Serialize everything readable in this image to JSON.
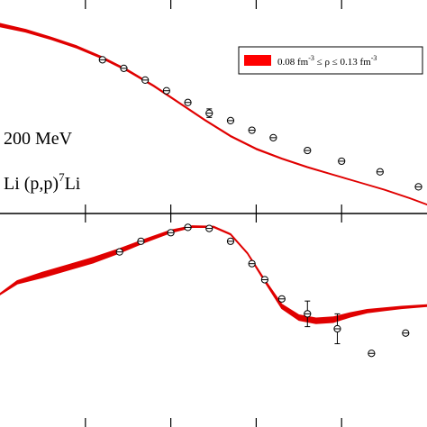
{
  "chart_data": [
    {
      "type": "line",
      "panel": "top",
      "xlim": [
        -2.5,
        2.5
      ],
      "ylim": [
        0,
        1
      ],
      "annotations": [
        {
          "text": "200 MeV"
        },
        {
          "prefix": "Li (p,p)",
          "sup": "7",
          "suffix": "Li"
        }
      ],
      "legend": {
        "placement": "top-right",
        "color": "#ff0000",
        "parts": [
          "0.08 fm",
          "-3",
          " ≤ ρ ≤ 0.13 fm",
          "-3"
        ]
      },
      "series": [
        {
          "kind": "band",
          "color": "#e00000",
          "x": [
            -2.5,
            -2.2,
            -1.9,
            -1.6,
            -1.3,
            -1.0,
            -0.7,
            -0.4,
            -0.1,
            0.2,
            0.5,
            0.8,
            1.1,
            1.4,
            1.7,
            2.0,
            2.3,
            2.5
          ],
          "lower": [
            0.875,
            0.85,
            0.815,
            0.775,
            0.725,
            0.665,
            0.595,
            0.515,
            0.435,
            0.36,
            0.3,
            0.255,
            0.215,
            0.18,
            0.145,
            0.11,
            0.07,
            0.04
          ],
          "upper": [
            0.89,
            0.862,
            0.825,
            0.785,
            0.733,
            0.672,
            0.601,
            0.52,
            0.44,
            0.365,
            0.305,
            0.259,
            0.219,
            0.183,
            0.148,
            0.113,
            0.073,
            0.043
          ]
        },
        {
          "kind": "points",
          "x": [
            -1.3,
            -1.05,
            -0.8,
            -0.55,
            -0.3,
            -0.05,
            0.2,
            0.45,
            0.7,
            1.1,
            1.5,
            1.95,
            2.4
          ],
          "y": [
            0.72,
            0.68,
            0.625,
            0.575,
            0.52,
            0.47,
            0.435,
            0.39,
            0.355,
            0.295,
            0.245,
            0.195,
            0.125
          ],
          "err": [
            0.012,
            0.012,
            0.012,
            0.012,
            0.012,
            0.02,
            0.012,
            0.012,
            0.012,
            0.012,
            0.012,
            0.012,
            0.012
          ]
        }
      ]
    },
    {
      "type": "line",
      "panel": "bottom",
      "xlim": [
        -2.5,
        2.5
      ],
      "ylim": [
        0,
        1
      ],
      "series": [
        {
          "kind": "band",
          "color": "#e00000",
          "x": [
            -2.5,
            -2.3,
            -2.0,
            -1.7,
            -1.4,
            -1.1,
            -0.8,
            -0.5,
            -0.25,
            0.0,
            0.2,
            0.4,
            0.6,
            0.8,
            1.0,
            1.2,
            1.4,
            1.6,
            1.8,
            2.0,
            2.2,
            2.5
          ],
          "lower": [
            0.62,
            0.67,
            0.7,
            0.735,
            0.77,
            0.815,
            0.865,
            0.91,
            0.935,
            0.935,
            0.9,
            0.81,
            0.68,
            0.555,
            0.5,
            0.485,
            0.49,
            0.515,
            0.535,
            0.545,
            0.555,
            0.565
          ],
          "upper": [
            0.625,
            0.685,
            0.725,
            0.76,
            0.795,
            0.835,
            0.88,
            0.922,
            0.942,
            0.94,
            0.905,
            0.815,
            0.69,
            0.575,
            0.525,
            0.51,
            0.515,
            0.535,
            0.55,
            0.558,
            0.565,
            0.572
          ]
        },
        {
          "kind": "points",
          "x": [
            -1.1,
            -0.85,
            -0.5,
            -0.3,
            -0.05,
            0.2,
            0.45,
            0.6,
            0.8,
            1.1,
            1.45,
            1.85,
            2.25
          ],
          "y": [
            0.82,
            0.87,
            0.91,
            0.935,
            0.93,
            0.87,
            0.765,
            0.69,
            0.6,
            0.53,
            0.46,
            0.345,
            0.44
          ],
          "err": [
            0.012,
            0.012,
            0.012,
            0.012,
            0.012,
            0.012,
            0.012,
            0.012,
            0.012,
            0.06,
            0.07,
            0.012,
            0.012
          ]
        }
      ]
    }
  ]
}
